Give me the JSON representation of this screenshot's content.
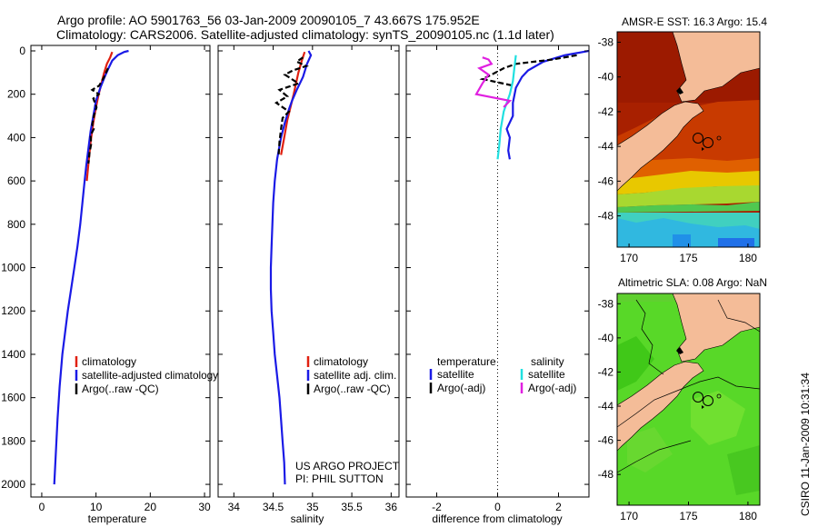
{
  "title": {
    "line1": "Argo profile: AO 5901763_56 03-Jan-2009 20090105_7 43.667S 175.952E",
    "line2": "Climatology: CARS2006. Satellite-adjusted climatology: synTS_20090105.nc (1.1d later)"
  },
  "colors": {
    "climatology": "#e02010",
    "satellite": "#1a1ae6",
    "argo": "#000000",
    "sal_satellite": "#20e0e0",
    "sal_argo": "#e020e0",
    "land": "#f4bc98"
  },
  "watermark": "CSIRO 11-Jan-2009 10:31:34",
  "chart_data": [
    {
      "id": "temperature",
      "type": "line",
      "xlabel": "temperature",
      "ylabel": "",
      "xlim": [
        -2,
        31
      ],
      "ylim": [
        2050,
        0
      ],
      "xticks": [
        "0",
        "10",
        "20",
        "30"
      ],
      "xtick_values": [
        0,
        10,
        20,
        30
      ],
      "yticks": [
        "0",
        "200",
        "400",
        "600",
        "800",
        "1000",
        "1200",
        "1400",
        "1600",
        "1800",
        "2000"
      ],
      "ytick_values": [
        0,
        200,
        400,
        600,
        800,
        1000,
        1200,
        1400,
        1600,
        1800,
        2000
      ],
      "legend": [
        "climatology",
        "satellite-adjusted climatology",
        "Argo(..raw -QC)"
      ],
      "legend_location": "lower-right",
      "series": [
        {
          "name": "climatology",
          "color": "#e02010",
          "points": [
            [
              13.0,
              5
            ],
            [
              12.6,
              30
            ],
            [
              12.0,
              60
            ],
            [
              11.5,
              100
            ],
            [
              11.0,
              150
            ],
            [
              10.5,
              200
            ],
            [
              10.0,
              260
            ],
            [
              9.5,
              330
            ],
            [
              9.0,
              420
            ],
            [
              8.6,
              520
            ],
            [
              8.3,
              600
            ]
          ]
        },
        {
          "name": "satellite-adjusted climatology",
          "color": "#1a1ae6",
          "points": [
            [
              16.0,
              0
            ],
            [
              15.2,
              5
            ],
            [
              14.0,
              20
            ],
            [
              13.0,
              45
            ],
            [
              12.3,
              80
            ],
            [
              11.6,
              120
            ],
            [
              10.8,
              170
            ],
            [
              10.0,
              230
            ],
            [
              9.5,
              300
            ],
            [
              9.0,
              370
            ],
            [
              8.6,
              450
            ],
            [
              8.2,
              530
            ],
            [
              7.9,
              600
            ],
            [
              7.5,
              700
            ],
            [
              7.1,
              800
            ],
            [
              6.6,
              900
            ],
            [
              6.0,
              1000
            ],
            [
              5.4,
              1100
            ],
            [
              4.8,
              1200
            ],
            [
              4.3,
              1300
            ],
            [
              3.8,
              1400
            ],
            [
              3.3,
              1550
            ],
            [
              2.9,
              1700
            ],
            [
              2.6,
              1850
            ],
            [
              2.3,
              2000
            ]
          ]
        },
        {
          "name": "Argo(..raw -QC)",
          "color": "#000000",
          "points": [
            [
              12.2,
              80
            ],
            [
              11.5,
              120
            ],
            [
              10.6,
              160
            ],
            [
              9.3,
              180
            ],
            [
              10.5,
              200
            ],
            [
              9.5,
              220
            ],
            [
              10.1,
              260
            ],
            [
              9.6,
              300
            ],
            [
              9.3,
              340
            ],
            [
              9.6,
              360
            ],
            [
              9.0,
              390
            ],
            [
              9.1,
              430
            ],
            [
              8.8,
              470
            ],
            [
              8.6,
              520
            ]
          ]
        }
      ]
    },
    {
      "id": "salinity",
      "type": "line",
      "xlabel": "salinity",
      "xlim": [
        33.8,
        36.1
      ],
      "ylim": [
        2050,
        0
      ],
      "xticks": [
        "34",
        "34.5",
        "35",
        "35.5",
        "36"
      ],
      "xtick_values": [
        34,
        34.5,
        35,
        35.5,
        36
      ],
      "legend": [
        "climatology",
        "satellite adj. clim.",
        "Argo(..raw -QC)"
      ],
      "legend_location": "lower-right",
      "annotation": [
        "US ARGO PROJECT",
        "PI: PHIL SUTTON"
      ],
      "series": [
        {
          "name": "climatology",
          "color": "#e02010",
          "points": [
            [
              34.9,
              5
            ],
            [
              34.86,
              50
            ],
            [
              34.82,
              100
            ],
            [
              34.79,
              150
            ],
            [
              34.76,
              200
            ],
            [
              34.72,
              260
            ],
            [
              34.68,
              320
            ],
            [
              34.64,
              400
            ],
            [
              34.6,
              480
            ]
          ]
        },
        {
          "name": "satellite adj. clim.",
          "color": "#1a1ae6",
          "points": [
            [
              34.95,
              0
            ],
            [
              34.98,
              20
            ],
            [
              34.93,
              60
            ],
            [
              34.88,
              120
            ],
            [
              34.8,
              180
            ],
            [
              34.74,
              230
            ],
            [
              34.7,
              270
            ],
            [
              34.65,
              330
            ],
            [
              34.6,
              400
            ],
            [
              34.55,
              500
            ],
            [
              34.52,
              600
            ],
            [
              34.5,
              700
            ],
            [
              34.49,
              800
            ],
            [
              34.48,
              900
            ],
            [
              34.47,
              1000
            ],
            [
              34.47,
              1100
            ],
            [
              34.48,
              1200
            ],
            [
              34.5,
              1300
            ],
            [
              34.52,
              1400
            ],
            [
              34.55,
              1500
            ],
            [
              34.58,
              1600
            ],
            [
              34.6,
              1700
            ],
            [
              34.62,
              1800
            ],
            [
              34.64,
              1900
            ],
            [
              34.65,
              2000
            ]
          ]
        },
        {
          "name": "Argo(..raw -QC)",
          "color": "#000000",
          "points": [
            [
              34.88,
              30
            ],
            [
              34.8,
              50
            ],
            [
              34.92,
              70
            ],
            [
              34.75,
              90
            ],
            [
              34.65,
              110
            ],
            [
              34.82,
              150
            ],
            [
              34.58,
              180
            ],
            [
              34.68,
              210
            ],
            [
              34.54,
              240
            ],
            [
              34.7,
              280
            ],
            [
              34.62,
              310
            ],
            [
              34.6,
              360
            ],
            [
              34.58,
              420
            ],
            [
              34.57,
              480
            ]
          ]
        }
      ]
    },
    {
      "id": "difference",
      "type": "line",
      "xlabel": "difference from climatology",
      "xlim": [
        -3,
        3
      ],
      "ylim": [
        2050,
        0
      ],
      "xticks": [
        "-2",
        "0",
        "2"
      ],
      "xtick_values": [
        -2,
        0,
        2
      ],
      "zero_line": true,
      "legend_headers": [
        "temperature",
        "salinity"
      ],
      "legend": [
        "satellite",
        "Argo(-adj)",
        "satellite",
        "Argo(-adj)"
      ],
      "legend_location": "lower-center",
      "series": [
        {
          "name": "temperature satellite",
          "color": "#1a1ae6",
          "points": [
            [
              3.0,
              0
            ],
            [
              2.2,
              20
            ],
            [
              1.5,
              50
            ],
            [
              1.0,
              90
            ],
            [
              0.8,
              120
            ],
            [
              0.6,
              170
            ],
            [
              0.5,
              240
            ],
            [
              0.5,
              300
            ],
            [
              0.3,
              360
            ],
            [
              0.4,
              400
            ],
            [
              0.35,
              460
            ],
            [
              0.4,
              500
            ]
          ]
        },
        {
          "name": "temperature Argo(-adj)",
          "color": "#000000",
          "points": [
            [
              2.6,
              20
            ],
            [
              1.8,
              40
            ],
            [
              1.2,
              50
            ],
            [
              0.6,
              60
            ],
            [
              0.2,
              80
            ],
            [
              -0.2,
              110
            ],
            [
              -0.5,
              130
            ],
            [
              0.5,
              160
            ]
          ]
        },
        {
          "name": "salinity satellite",
          "color": "#20e0e0",
          "points": [
            [
              0.6,
              20
            ],
            [
              0.55,
              80
            ],
            [
              0.5,
              140
            ],
            [
              0.4,
              200
            ],
            [
              0.2,
              280
            ],
            [
              0.1,
              360
            ],
            [
              0.05,
              440
            ],
            [
              0.0,
              500
            ]
          ]
        },
        {
          "name": "salinity Argo(-adj)",
          "color": "#e020e0",
          "points": [
            [
              -0.5,
              30
            ],
            [
              -0.3,
              40
            ],
            [
              -0.2,
              60
            ],
            [
              -0.6,
              80
            ],
            [
              -0.3,
              110
            ],
            [
              -0.5,
              150
            ],
            [
              -0.7,
              200
            ],
            [
              0.4,
              230
            ],
            [
              0.2,
              260
            ]
          ]
        }
      ]
    },
    {
      "id": "amsr-e-sst-map",
      "type": "heatmap",
      "title": "AMSR-E SST: 16.3 Argo: 15.4",
      "xticks": [
        "170",
        "175",
        "180"
      ],
      "xtick_values": [
        170,
        175,
        180
      ],
      "yticks": [
        "-38",
        "-40",
        "-42",
        "-44",
        "-46",
        "-48"
      ],
      "ytick_values": [
        -38,
        -40,
        -42,
        -44,
        -46,
        -48
      ],
      "xlim": [
        169,
        181
      ],
      "ylim": [
        -49.8,
        -37.4
      ],
      "float_position": [
        175.95,
        -43.67
      ]
    },
    {
      "id": "altimetric-sla-map",
      "type": "heatmap",
      "title": "Altimetric SLA: 0.08 Argo: NaN",
      "xticks": [
        "170",
        "175",
        "180"
      ],
      "xtick_values": [
        170,
        175,
        180
      ],
      "yticks": [
        "-38",
        "-40",
        "-42",
        "-44",
        "-46",
        "-48"
      ],
      "ytick_values": [
        -38,
        -40,
        -42,
        -44,
        -46,
        -48
      ],
      "xlim": [
        169,
        181
      ],
      "ylim": [
        -49.8,
        -37.4
      ],
      "float_position": [
        175.95,
        -43.67
      ]
    }
  ]
}
